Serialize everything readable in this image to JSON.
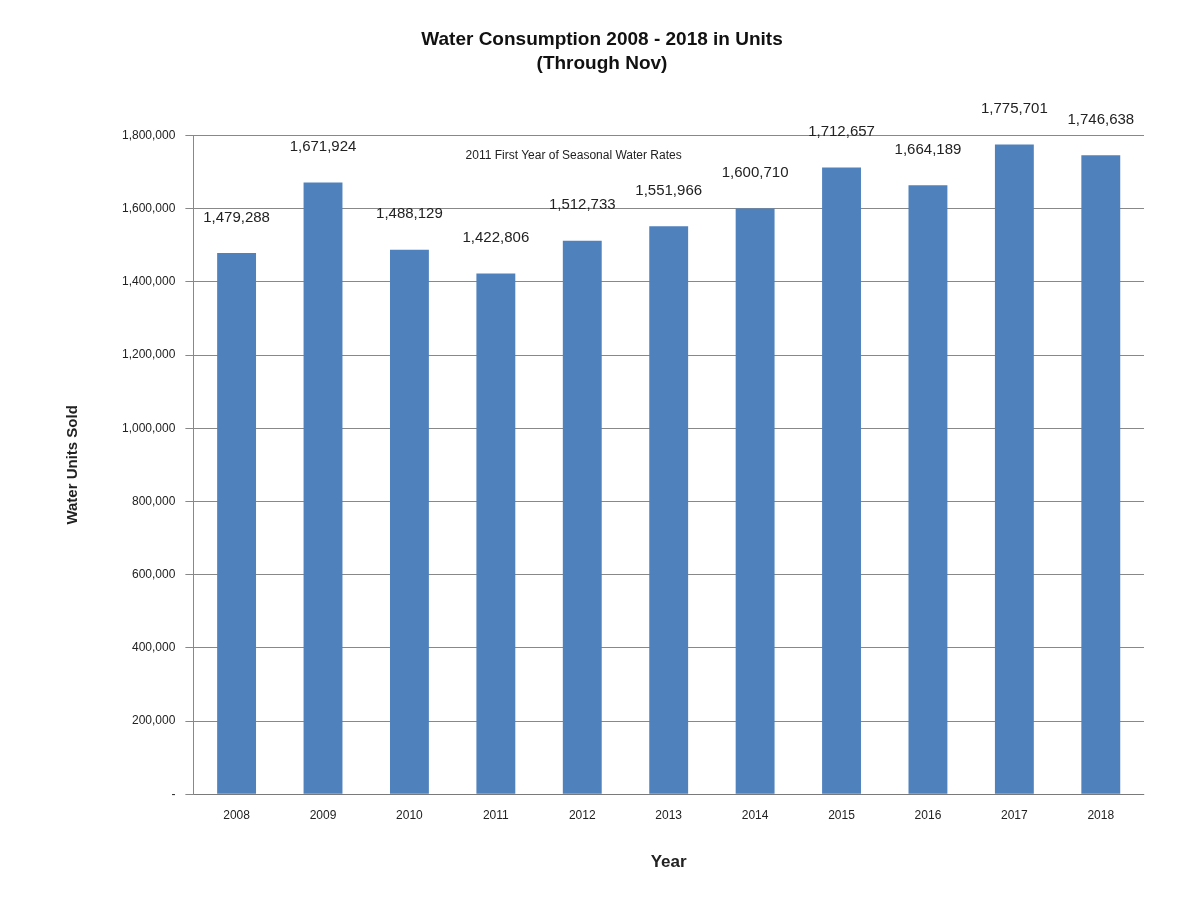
{
  "chart_data": {
    "type": "bar",
    "title": "Water Consumption 2008 - 2018 in Units",
    "subtitle": "(Through Nov)",
    "xlabel": "Year",
    "ylabel": "Water Units Sold",
    "categories": [
      "2008",
      "2009",
      "2010",
      "2011",
      "2012",
      "2013",
      "2014",
      "2015",
      "2016",
      "2017",
      "2018"
    ],
    "values": [
      1479288,
      1671924,
      1488129,
      1422806,
      1512733,
      1551966,
      1600710,
      1712657,
      1664189,
      1775701,
      1746638
    ],
    "value_labels": [
      "1,479,288",
      "1,671,924",
      "1,488,129",
      "1,422,806",
      "1,512,733",
      "1,551,966",
      "1,600,710",
      "1,712,657",
      "1,664,189",
      "1,775,701",
      "1,746,638"
    ],
    "color": "#4f81bd",
    "ylim": [
      0,
      1800000
    ],
    "yticks": [
      {
        "value": 0,
        "label": "-"
      },
      {
        "value": 200000,
        "label": "200,000"
      },
      {
        "value": 400000,
        "label": "400,000"
      },
      {
        "value": 600000,
        "label": "600,000"
      },
      {
        "value": 800000,
        "label": "800,000"
      },
      {
        "value": 1000000,
        "label": "1,000,000"
      },
      {
        "value": 1200000,
        "label": "1,200,000"
      },
      {
        "value": 1400000,
        "label": "1,400,000"
      },
      {
        "value": 1600000,
        "label": "1,600,000"
      },
      {
        "value": 1800000,
        "label": "1,800,000"
      }
    ],
    "grid": "y",
    "legend": false,
    "annotations": [
      "2011 First Year of Seasonal Water Rates"
    ]
  }
}
